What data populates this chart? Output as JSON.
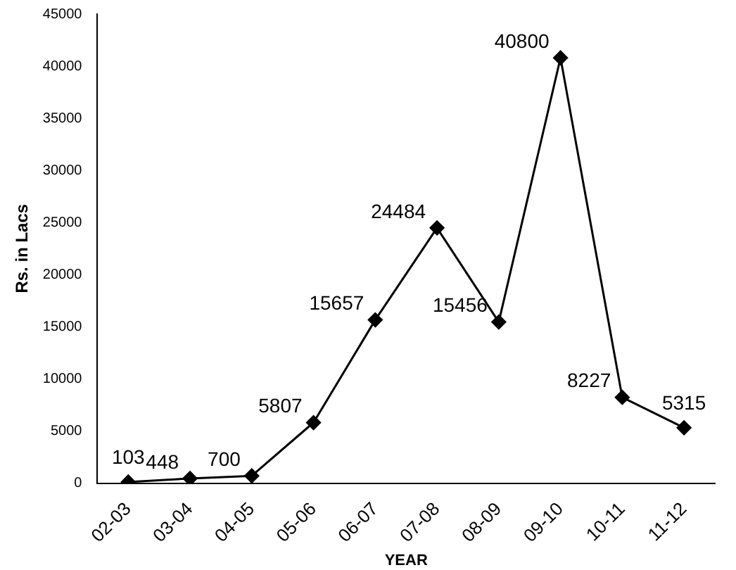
{
  "chart_data": {
    "type": "line",
    "xlabel": "YEAR",
    "ylabel": "Rs. in Lacs",
    "categories": [
      "02-03",
      "03-04",
      "04-05",
      "05-06",
      "06-07",
      "07-08",
      "08-09",
      "09-10",
      "10-11",
      "11-12"
    ],
    "values": [
      103,
      448,
      700,
      5807,
      15657,
      24484,
      15456,
      40800,
      8227,
      5315
    ],
    "color": "#000000",
    "ylim": [
      0,
      45000
    ],
    "yticks": [
      0,
      5000,
      10000,
      15000,
      20000,
      25000,
      30000,
      35000,
      40000,
      45000
    ],
    "grid": false,
    "legend": false,
    "marker": "diamond",
    "line_style": "solid",
    "data_labels": true
  }
}
